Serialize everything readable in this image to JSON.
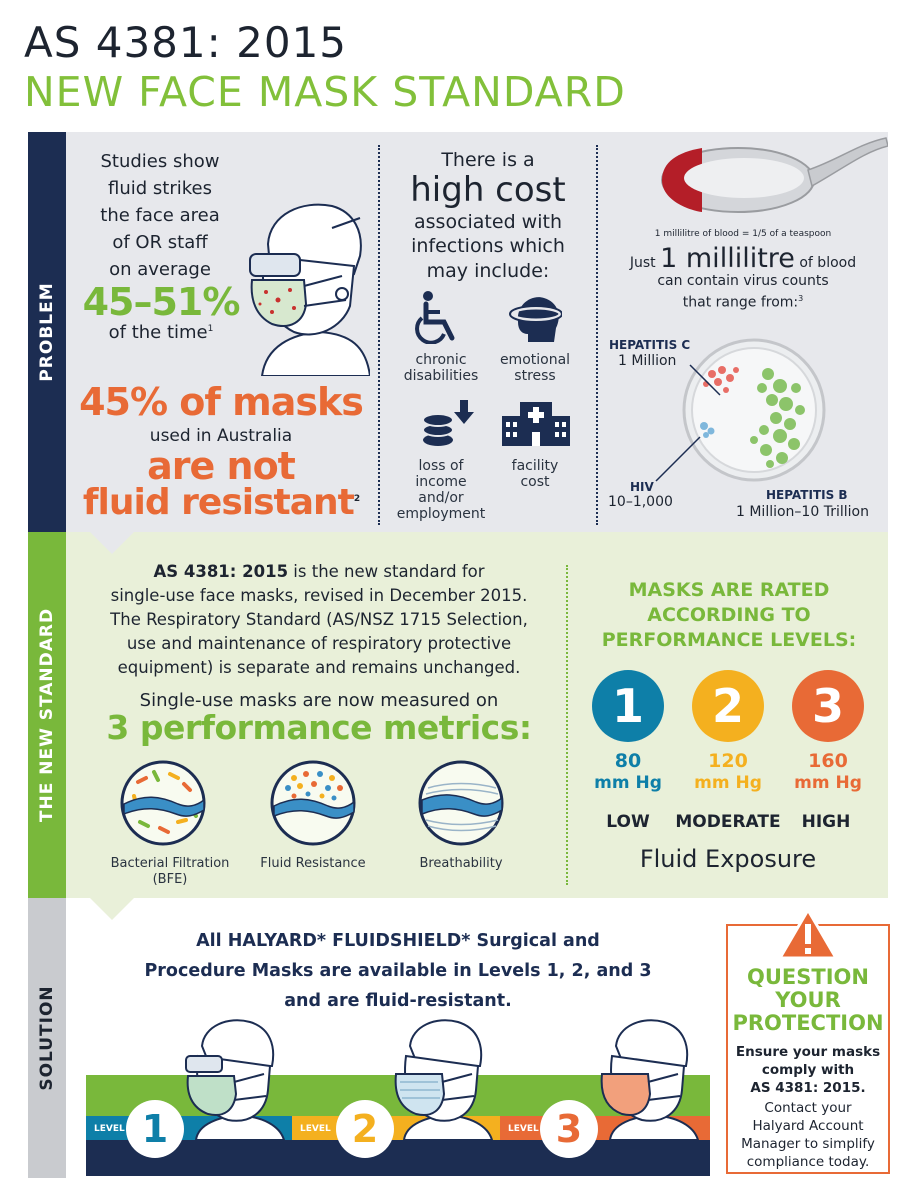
{
  "title": {
    "line1": "AS 4381: 2015",
    "line2": "NEW FACE MASK STANDARD"
  },
  "sections": {
    "problem": "PROBLEM",
    "standard": "THE NEW STANDARD",
    "solution": "SOLUTION"
  },
  "problem": {
    "studies_lines": [
      "Studies show",
      "fluid strikes",
      "the face area",
      "of OR staff",
      "on average"
    ],
    "range": "45–51%",
    "time_text": "of the time",
    "time_sup": "1",
    "masks_pct": "45% of masks",
    "masks_used": "used in Australia",
    "are_not": "are not",
    "fluid_resistant": "fluid resistant",
    "fluid_sup": "2",
    "cost": {
      "line1": "There is a",
      "high_cost": "high cost",
      "line3": "associated with",
      "line4": "infections which",
      "line5": "may include:"
    },
    "cost_items": [
      {
        "icon": "wheelchair-icon",
        "label_lines": [
          "chronic",
          "disabilities"
        ]
      },
      {
        "icon": "stressed-head-icon",
        "label_lines": [
          "emotional",
          "stress"
        ]
      },
      {
        "icon": "coins-loss-icon",
        "label_lines": [
          "loss of",
          "income",
          "and/or",
          "employment"
        ]
      },
      {
        "icon": "hospital-building-icon",
        "label_lines": [
          "facility",
          "cost"
        ]
      }
    ],
    "blood": {
      "spoon_caption": "1 millilitre of blood = 1/5 of a teaspoon",
      "just": "Just",
      "one_ml": "1 millilitre",
      "of_blood": "of blood",
      "line2": "can contain virus counts",
      "line3": "that range from:",
      "line3_sup": "3",
      "hep_c_label": "HEPATITIS C",
      "hep_c_value": "1 Million",
      "hiv_label": "HIV",
      "hiv_value": "10–1,000",
      "hep_b_label": "HEPATITIS B",
      "hep_b_value": "1 Million–10 Trillion"
    }
  },
  "standard": {
    "para_bold": "AS 4381: 2015",
    "para_rest": " is the new standard for",
    "para_lines": [
      "single-use face masks, revised in December 2015.",
      "The Respiratory Standard (AS/NSZ 1715  Selection,",
      "use and maintenance of respiratory protective",
      "equipment) is separate and remains unchanged."
    ],
    "measured": "Single-use masks are now measured on",
    "metrics_title": "3 performance metrics:",
    "metrics": [
      {
        "icon": "bacteria-filter-icon",
        "label_lines": [
          "Bacterial Filtration",
          "(BFE)"
        ]
      },
      {
        "icon": "fluid-drops-icon",
        "label_lines": [
          "Fluid  Resistance"
        ]
      },
      {
        "icon": "airflow-icon",
        "label_lines": [
          "Breathability"
        ]
      }
    ],
    "rated_lines": [
      "MASKS ARE RATED",
      "ACCORDING TO",
      "PERFORMANCE LEVELS:"
    ],
    "levels": [
      {
        "number": "1",
        "value": "80",
        "unit": "mm Hg",
        "name": "LOW",
        "color": "#0e7fa8"
      },
      {
        "number": "2",
        "value": "120",
        "unit": "mm Hg",
        "name": "MODERATE",
        "color": "#f4b01f"
      },
      {
        "number": "3",
        "value": "160",
        "unit": "mm Hg",
        "name": "HIGH",
        "color": "#e86a36"
      }
    ],
    "fluid_exposure": "Fluid Exposure"
  },
  "solution": {
    "lines": [
      "All HALYARD* FLUIDSHIELD* Surgical and",
      "Procedure Masks are available in Levels 1, 2, and 3",
      "and are fluid-resistant."
    ],
    "level_word": "LEVEL",
    "badges": [
      "1",
      "2",
      "3"
    ],
    "callout": {
      "title_lines": [
        "QUESTION",
        "YOUR",
        "PROTECTION"
      ],
      "bold_lines": [
        "Ensure your masks",
        "comply with",
        "AS 4381: 2015."
      ],
      "plain_lines": [
        "Contact your",
        "Halyard Account",
        "Manager to simplify",
        "compliance today."
      ]
    }
  },
  "colors": {
    "navy": "#1c2d52",
    "green": "#79b83b",
    "teal": "#0e7fa8",
    "yellow": "#f4b01f",
    "orange": "#e86a36"
  }
}
